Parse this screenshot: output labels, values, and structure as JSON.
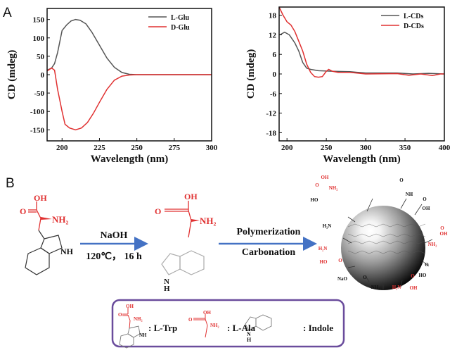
{
  "panels": {
    "a": "A",
    "b": "B"
  },
  "colors": {
    "l_series": "#555555",
    "d_series": "#e03030",
    "arrow": "#4472c4",
    "legend_border": "#6a4c9c"
  },
  "chart_data": [
    {
      "type": "line",
      "title": "",
      "xlabel": "Wavelength (nm)",
      "ylabel": "CD (mdeg)",
      "xlim": [
        190,
        300
      ],
      "ylim": [
        -180,
        180
      ],
      "xticks": [
        200,
        225,
        250,
        275,
        300
      ],
      "yticks": [
        -150,
        -100,
        -50,
        0,
        50,
        100,
        150
      ],
      "legend_position": "top-right",
      "series": [
        {
          "name": "L-Glu",
          "color": "#555555",
          "x": [
            190,
            193,
            195,
            197,
            200,
            203,
            206,
            209,
            212,
            216,
            220,
            225,
            230,
            235,
            240,
            245,
            250,
            300
          ],
          "y": [
            12,
            18,
            30,
            60,
            120,
            135,
            146,
            150,
            148,
            138,
            115,
            80,
            45,
            20,
            6,
            1,
            0,
            0
          ]
        },
        {
          "name": "D-Glu",
          "color": "#e03030",
          "x": [
            190,
            193,
            195,
            197,
            200,
            202,
            205,
            209,
            213,
            217,
            221,
            225,
            230,
            235,
            240,
            245,
            250,
            300
          ],
          "y": [
            10,
            18,
            12,
            -40,
            -100,
            -135,
            -145,
            -150,
            -145,
            -130,
            -105,
            -75,
            -40,
            -15,
            -4,
            -1,
            0,
            0
          ]
        }
      ]
    },
    {
      "type": "line",
      "title": "",
      "xlabel": "Wavelength (nm)",
      "ylabel": "CD (mdeg)",
      "xlim": [
        190,
        400
      ],
      "ylim": [
        -20.5,
        20.5
      ],
      "xticks": [
        200,
        250,
        300,
        350,
        400
      ],
      "yticks": [
        -18,
        -12,
        -6,
        0,
        6,
        12,
        18
      ],
      "legend_position": "top-right",
      "series": [
        {
          "name": "L-CDs",
          "color": "#555555",
          "x": [
            191,
            197,
            203,
            210,
            215,
            220,
            225,
            230,
            240,
            260,
            280,
            300,
            340,
            360,
            380,
            400
          ],
          "y": [
            12,
            12.8,
            12,
            9.5,
            7,
            3.5,
            1.8,
            1.4,
            1,
            0.8,
            0.7,
            0.3,
            0.3,
            0,
            0.2,
            0
          ]
        },
        {
          "name": "D-CDs",
          "color": "#e03030",
          "x": [
            190,
            195,
            200,
            205,
            210,
            215,
            220,
            225,
            230,
            235,
            240,
            245,
            250,
            253,
            258,
            265,
            280,
            300,
            340,
            355,
            370,
            385,
            395,
            400
          ],
          "y": [
            20.5,
            18,
            16,
            15,
            13,
            10,
            7,
            3,
            0.5,
            -0.8,
            -1,
            -0.8,
            0.8,
            1.4,
            0.8,
            0.5,
            0.5,
            0,
            0.1,
            -0.4,
            0,
            -0.5,
            0,
            0
          ]
        }
      ]
    }
  ],
  "scheme": {
    "step1": {
      "reagent": "NaOH",
      "conditions": "120℃， 16 h"
    },
    "step2": {
      "line1": "Polymerization",
      "line2": "Carbonation"
    },
    "trp": {
      "oh": "OH",
      "o": "O",
      "nh2": "NH₂",
      "nh": "NH"
    },
    "ala": {
      "oh": "OH",
      "o": "O",
      "nh2": "NH₂"
    },
    "indole": {
      "n": "N",
      "h": "H"
    },
    "dot_groups": [
      "OH",
      "O",
      "NH₂",
      "HO",
      "O",
      "NH",
      "O",
      "OH",
      "H₂N",
      "O",
      "OH",
      "NH₂",
      "H₂N",
      "HO",
      "O",
      "O",
      "HO",
      "NaO",
      "O",
      "NH₂",
      "H₂N",
      "O",
      "OH"
    ],
    "legend": {
      "trp": ": L-Trp",
      "ala": ": L-Ala",
      "indole": ": Indole",
      "trp_oh": "OH",
      "trp_o": "O",
      "trp_nh2": "NH₂",
      "trp_nh": "NH",
      "ala_oh": "OH",
      "ala_o": "O",
      "ala_nh2": "NH₂",
      "ind_n": "N",
      "ind_h": "H"
    }
  }
}
